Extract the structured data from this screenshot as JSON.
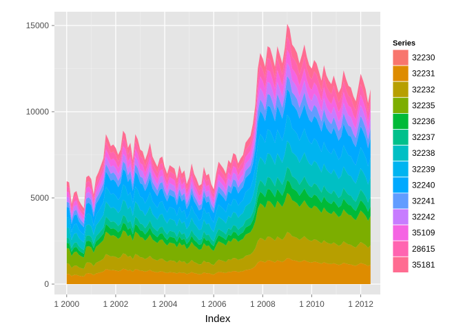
{
  "chart_data": {
    "type": "area",
    "stacked": true,
    "title": "",
    "xlabel": "Index",
    "ylabel": "",
    "x_ticks": [
      {
        "value": 2000,
        "label": "1 2000"
      },
      {
        "value": 2002,
        "label": "1 2002"
      },
      {
        "value": 2004,
        "label": "1 2004"
      },
      {
        "value": 2006,
        "label": "1 2006"
      },
      {
        "value": 2008,
        "label": "1 2008"
      },
      {
        "value": 2010,
        "label": "1 2010"
      },
      {
        "value": 2012,
        "label": "1 2012"
      }
    ],
    "y_ticks": [
      0,
      5000,
      10000,
      15000
    ],
    "xlim": [
      1999.5,
      2012.8
    ],
    "ylim": [
      -600,
      15800
    ],
    "legend": {
      "title": "Series",
      "position": "right"
    },
    "grid": true,
    "x": [
      2000.0,
      2000.1,
      2000.2,
      2000.3,
      2000.4,
      2000.5,
      2000.6,
      2000.7,
      2000.8,
      2000.9,
      2001.0,
      2001.1,
      2001.2,
      2001.3,
      2001.4,
      2001.5,
      2001.6,
      2001.7,
      2001.8,
      2001.9,
      2002.0,
      2002.1,
      2002.2,
      2002.3,
      2002.4,
      2002.5,
      2002.6,
      2002.7,
      2002.8,
      2002.9,
      2003.0,
      2003.1,
      2003.2,
      2003.3,
      2003.4,
      2003.5,
      2003.6,
      2003.7,
      2003.8,
      2003.9,
      2004.0,
      2004.1,
      2004.2,
      2004.3,
      2004.4,
      2004.5,
      2004.6,
      2004.7,
      2004.8,
      2004.9,
      2005.0,
      2005.1,
      2005.2,
      2005.3,
      2005.4,
      2005.5,
      2005.6,
      2005.7,
      2005.8,
      2005.9,
      2006.0,
      2006.1,
      2006.2,
      2006.3,
      2006.4,
      2006.5,
      2006.6,
      2006.7,
      2006.8,
      2006.9,
      2007.0,
      2007.1,
      2007.2,
      2007.3,
      2007.4,
      2007.5,
      2007.6,
      2007.7,
      2007.8,
      2007.9,
      2008.0,
      2008.1,
      2008.2,
      2008.3,
      2008.4,
      2008.5,
      2008.6,
      2008.7,
      2008.8,
      2008.9,
      2009.0,
      2009.1,
      2009.2,
      2009.3,
      2009.4,
      2009.5,
      2009.6,
      2009.7,
      2009.8,
      2009.9,
      2010.0,
      2010.1,
      2010.2,
      2010.3,
      2010.4,
      2010.5,
      2010.6,
      2010.7,
      2010.8,
      2010.9,
      2011.0,
      2011.1,
      2011.2,
      2011.3,
      2011.4,
      2011.5,
      2011.6,
      2011.7,
      2011.8,
      2011.9,
      2012.0,
      2012.1,
      2012.2,
      2012.3,
      2012.4
    ],
    "total": [
      5970,
      5900,
      4650,
      5300,
      5400,
      4850,
      4600,
      4400,
      6200,
      6300,
      6100,
      5200,
      6200,
      6500,
      6900,
      7300,
      8700,
      8400,
      8000,
      8100,
      7900,
      7500,
      7800,
      8900,
      8700,
      7900,
      8200,
      7200,
      8700,
      8400,
      7800,
      7700,
      7200,
      7600,
      8200,
      7400,
      7100,
      6800,
      7300,
      7400,
      6800,
      6400,
      6900,
      6800,
      6700,
      6100,
      6900,
      6400,
      6600,
      5800,
      6200,
      7000,
      6400,
      6100,
      5700,
      5800,
      6800,
      6300,
      6400,
      5800,
      5500,
      6400,
      7100,
      6900,
      6700,
      6400,
      7200,
      7000,
      7600,
      7500,
      7000,
      7300,
      7500,
      8200,
      8400,
      8600,
      9300,
      10400,
      12500,
      13400,
      13100,
      12600,
      13800,
      13700,
      13200,
      12600,
      13800,
      13300,
      12800,
      13700,
      15100,
      14800,
      13900,
      13700,
      13400,
      12800,
      13300,
      13900,
      13200,
      12700,
      12500,
      13000,
      12800,
      12300,
      11800,
      12700,
      12100,
      11800,
      11600,
      12100,
      11600,
      11100,
      11400,
      12400,
      11900,
      11500,
      11400,
      10900,
      10600,
      11400,
      12200,
      11800,
      11300,
      10500,
      11300
    ],
    "series": [
      {
        "name": "32230",
        "color": "#f8766d",
        "share": 0.0
      },
      {
        "name": "32231",
        "color": "#de8c00",
        "share": 0.1
      },
      {
        "name": "32232",
        "color": "#b79f00",
        "share": 0.1
      },
      {
        "name": "32235",
        "color": "#7cae00",
        "share": 0.15
      },
      {
        "name": "32236",
        "color": "#00ba38",
        "share": 0.05
      },
      {
        "name": "32237",
        "color": "#00c08b",
        "share": 0.05
      },
      {
        "name": "32238",
        "color": "#00bfc4",
        "share": 0.1
      },
      {
        "name": "32239",
        "color": "#00b4f0",
        "share": 0.1
      },
      {
        "name": "32240",
        "color": "#00a9ff",
        "share": 0.1
      },
      {
        "name": "32241",
        "color": "#619cff",
        "share": 0.05
      },
      {
        "name": "32242",
        "color": "#c77cff",
        "share": 0.05
      },
      {
        "name": "35109",
        "color": "#f564e3",
        "share": 0.05
      },
      {
        "name": "28615",
        "color": "#ff64b0",
        "share": 0.05
      },
      {
        "name": "35181",
        "color": "#ff6c91",
        "share": 0.05
      }
    ]
  }
}
